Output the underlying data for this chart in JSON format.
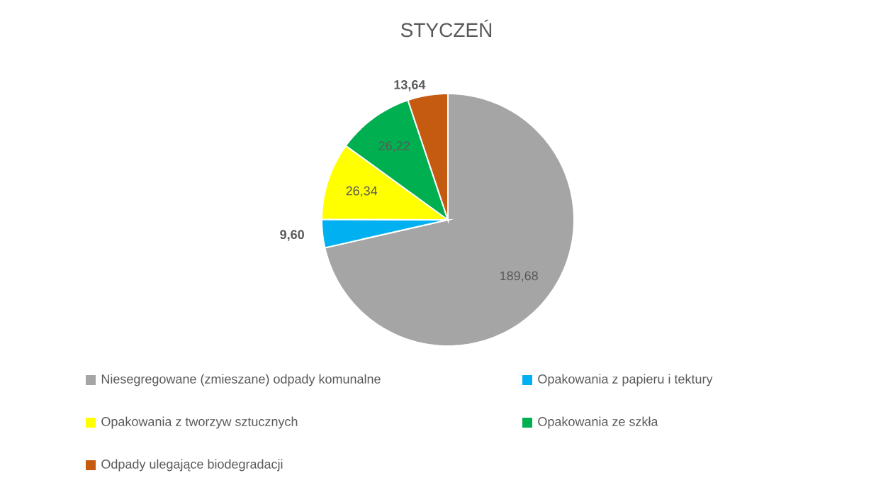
{
  "chart_data": {
    "type": "pie",
    "title": "STYCZEŃ",
    "categories": [
      "Niesegregowane (zmieszane) odpady komunalne",
      "Opakowania z papieru i tektury",
      "Opakowania z tworzyw sztucznych",
      "Opakowania ze szkła",
      "Odpady ulegające biodegradacji"
    ],
    "values": [
      189.68,
      9.6,
      26.34,
      26.22,
      13.64
    ],
    "value_labels": [
      "189,68",
      "9,60",
      "26,34",
      "26,22",
      "13,64"
    ],
    "colors": [
      "#a5a5a5",
      "#00b0f0",
      "#ffff00",
      "#00b050",
      "#c55a11"
    ],
    "legend": "bottom"
  }
}
